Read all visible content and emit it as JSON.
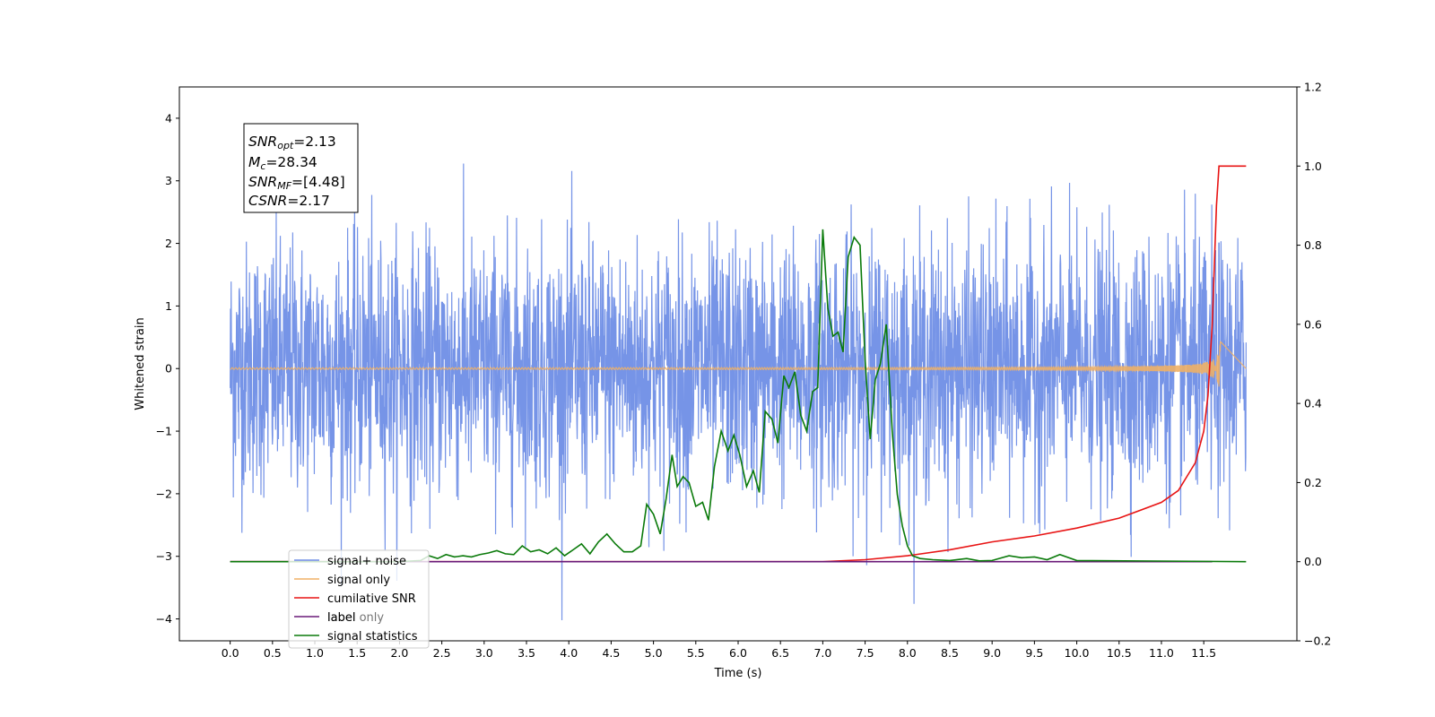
{
  "chart_data": {
    "type": "line",
    "xlabel": "Time (s)",
    "ylabel": "Whitened strain",
    "ylabel_right": "",
    "xlim": [
      -0.6,
      12.6
    ],
    "ylim": [
      -4.35,
      4.5
    ],
    "ylim_right": [
      -0.2,
      1.2
    ],
    "xticks": [
      "0.0",
      "0.5",
      "1.0",
      "1.5",
      "2.0",
      "2.5",
      "3.0",
      "3.5",
      "4.0",
      "4.5",
      "5.0",
      "5.5",
      "6.0",
      "6.5",
      "7.0",
      "7.5",
      "8.0",
      "8.5",
      "9.0",
      "9.5",
      "10.0",
      "10.5",
      "11.0",
      "11.5"
    ],
    "yticks": [
      "−4",
      "−3",
      "−2",
      "−1",
      "0",
      "1",
      "2",
      "3",
      "4"
    ],
    "yticks_right": [
      "−0.2",
      "0.0",
      "0.2",
      "0.4",
      "0.6",
      "0.8",
      "1.0",
      "1.2"
    ],
    "info_box": {
      "line1_label": "SNR",
      "line1_sub": "opt",
      "line1_value": "=2.13",
      "line2_label": "M",
      "line2_sub": "c",
      "line2_value": "=28.34",
      "line3_label": "SNR",
      "line3_sub": "MF",
      "line3_value": "=[4.48]",
      "line4_label": "CSNR",
      "line4_value": "=2.17"
    },
    "legend": {
      "placement": "lower-left",
      "items": [
        "signal+ noise",
        "signal only",
        "cumilative SNR",
        "label",
        "signal statistics"
      ],
      "hidden_text": "label only"
    },
    "series": [
      {
        "name": "signal+ noise",
        "color": "#6f8ee6",
        "axis": "left",
        "sigma": 1.0,
        "t_range": [
          0.0,
          12.0
        ],
        "description_points": "noise"
      },
      {
        "name": "signal only",
        "color": "#f0b066",
        "axis": "left",
        "chirp_end": 11.7,
        "peak_amplitude": 0.5
      },
      {
        "name": "cumilative SNR",
        "color": "#e81414",
        "axis": "right",
        "x": [
          0.0,
          7.0,
          7.5,
          8.0,
          8.5,
          9.0,
          9.5,
          10.0,
          10.5,
          11.0,
          11.2,
          11.4,
          11.5,
          11.55,
          11.6,
          11.65,
          11.68,
          12.0
        ],
        "y": [
          0.0,
          0.0,
          0.005,
          0.015,
          0.03,
          0.05,
          0.065,
          0.085,
          0.11,
          0.15,
          0.18,
          0.25,
          0.33,
          0.42,
          0.6,
          0.9,
          1.0,
          1.0
        ]
      },
      {
        "name": "label",
        "color": "#6a1a78",
        "axis": "right",
        "x": [
          0.0,
          11.6
        ],
        "y": [
          0.0,
          0.0
        ]
      },
      {
        "name": "signal statistics",
        "color": "#0a7a0a",
        "axis": "right",
        "x": [
          0.0,
          2.0,
          2.25,
          2.35,
          2.45,
          2.55,
          2.65,
          2.75,
          2.85,
          2.95,
          3.05,
          3.15,
          3.25,
          3.35,
          3.45,
          3.55,
          3.65,
          3.75,
          3.85,
          3.95,
          4.05,
          4.15,
          4.25,
          4.35,
          4.45,
          4.55,
          4.65,
          4.75,
          4.85,
          4.92,
          5.0,
          5.08,
          5.15,
          5.22,
          5.28,
          5.35,
          5.42,
          5.5,
          5.58,
          5.65,
          5.72,
          5.8,
          5.88,
          5.95,
          6.02,
          6.1,
          6.18,
          6.25,
          6.32,
          6.4,
          6.47,
          6.54,
          6.6,
          6.67,
          6.74,
          6.81,
          6.88,
          6.94,
          7.0,
          7.06,
          7.12,
          7.18,
          7.24,
          7.3,
          7.37,
          7.44,
          7.5,
          7.56,
          7.62,
          7.68,
          7.75,
          7.82,
          7.88,
          7.94,
          8.0,
          8.06,
          8.15,
          8.3,
          8.5,
          8.7,
          8.85,
          9.0,
          9.2,
          9.35,
          9.5,
          9.65,
          9.8,
          10.0,
          12.0
        ],
        "y": [
          0.0,
          0.0,
          0.003,
          0.015,
          0.008,
          0.018,
          0.012,
          0.015,
          0.012,
          0.018,
          0.022,
          0.028,
          0.02,
          0.018,
          0.04,
          0.025,
          0.03,
          0.02,
          0.035,
          0.015,
          0.03,
          0.045,
          0.02,
          0.05,
          0.07,
          0.045,
          0.025,
          0.025,
          0.04,
          0.145,
          0.12,
          0.07,
          0.16,
          0.27,
          0.19,
          0.215,
          0.2,
          0.14,
          0.15,
          0.105,
          0.24,
          0.33,
          0.28,
          0.32,
          0.27,
          0.19,
          0.23,
          0.175,
          0.38,
          0.36,
          0.3,
          0.47,
          0.44,
          0.48,
          0.37,
          0.33,
          0.43,
          0.44,
          0.84,
          0.64,
          0.57,
          0.58,
          0.53,
          0.77,
          0.82,
          0.8,
          0.51,
          0.31,
          0.46,
          0.5,
          0.6,
          0.33,
          0.17,
          0.09,
          0.04,
          0.015,
          0.008,
          0.005,
          0.003,
          0.008,
          0.002,
          0.003,
          0.015,
          0.01,
          0.012,
          0.005,
          0.018,
          0.003,
          0.0
        ]
      }
    ]
  }
}
